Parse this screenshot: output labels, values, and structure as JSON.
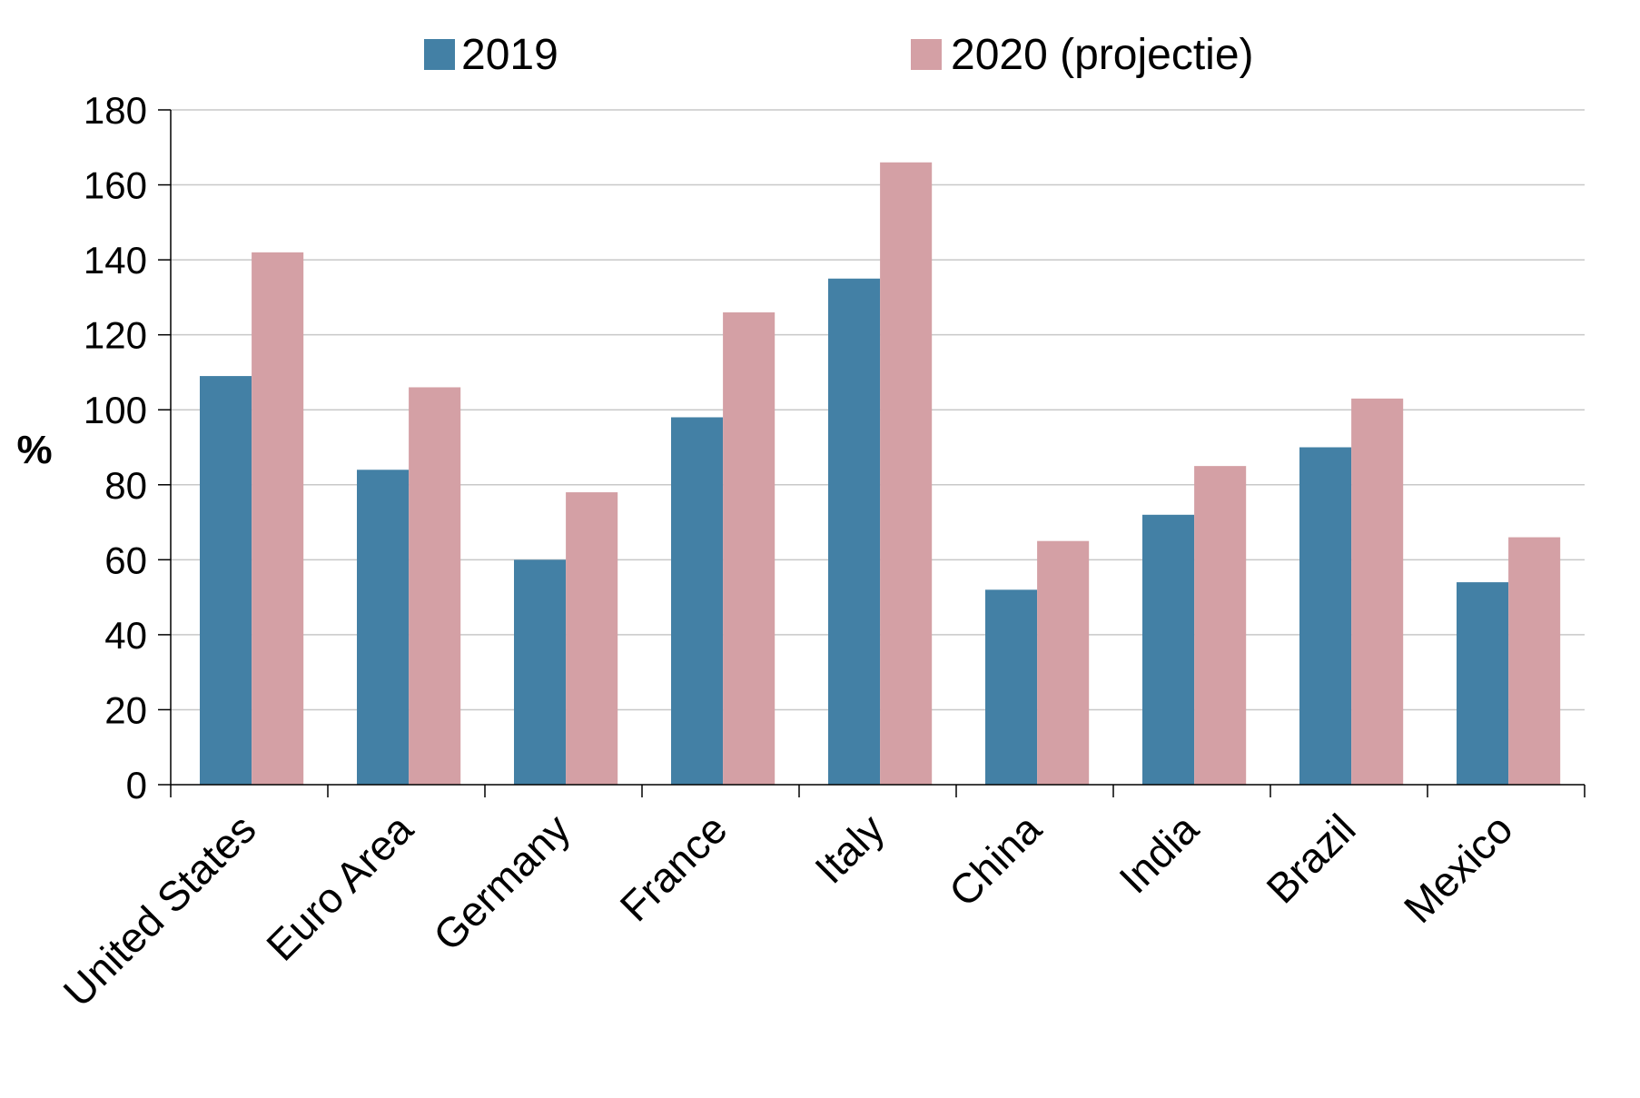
{
  "chart_data": {
    "type": "bar",
    "ylabel": "%",
    "ylim": [
      0,
      180
    ],
    "yticks": [
      0,
      20,
      40,
      60,
      80,
      100,
      120,
      140,
      160,
      180
    ],
    "grid": true,
    "legend_position": "top",
    "categories": [
      "United States",
      "Euro Area",
      "Germany",
      "France",
      "Italy",
      "China",
      "India",
      "Brazil",
      "Mexico"
    ],
    "series": [
      {
        "name": "2019",
        "color": "#4380a5",
        "values": [
          109,
          84,
          60,
          98,
          135,
          52,
          72,
          90,
          54
        ]
      },
      {
        "name": "2020 (projectie)",
        "color": "#d4a0a5",
        "values": [
          142,
          106,
          78,
          126,
          166,
          65,
          85,
          103,
          66
        ]
      }
    ]
  }
}
